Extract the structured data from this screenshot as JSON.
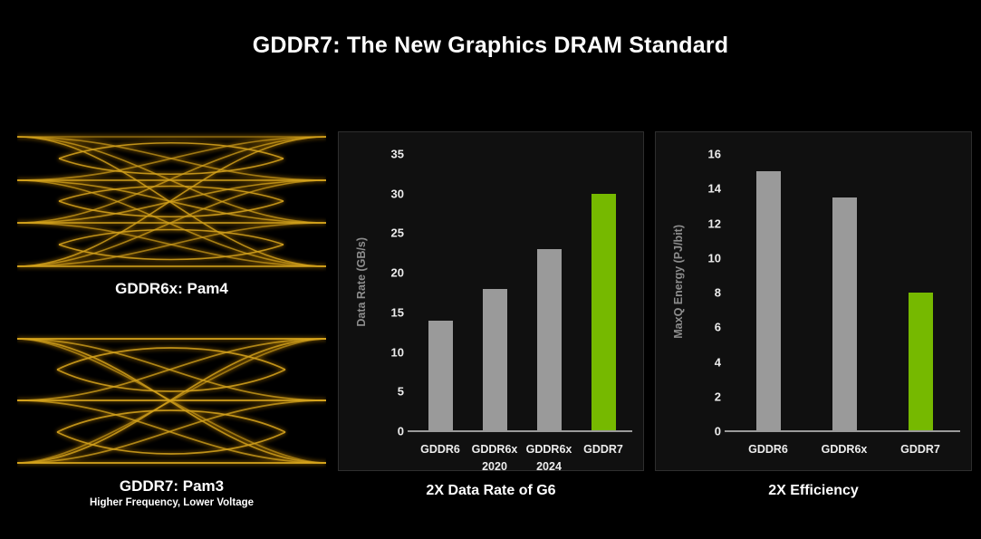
{
  "title": "GDDR7: The New Graphics DRAM Standard",
  "colors": {
    "background": "#000000",
    "panel_bg": "#101010",
    "panel_border": "#2e2e2e",
    "bar_gray": "#9a9a9a",
    "nvidia_green": "#76b900",
    "trace_gold": "#d7a51d",
    "axis_line": "#9a9a9a",
    "tick_text": "#ededed",
    "ylabel_text": "#8d8d8d",
    "title_text": "#ffffff"
  },
  "eye_panels": [
    {
      "label": "GDDR6x: Pam4",
      "sublabel": ""
    },
    {
      "label": "GDDR7: Pam3",
      "sublabel": "Higher Frequency, Lower Voltage"
    }
  ],
  "chart_data": [
    {
      "type": "bar",
      "title": "2X Data Rate of G6",
      "xlabel": "",
      "ylabel": "Data Rate (GB/s)",
      "categories": [
        "GDDR6",
        "GDDR6x\n2020",
        "GDDR6x\n2024",
        "GDDR7"
      ],
      "values": [
        14,
        18,
        23,
        30
      ],
      "bar_colors": [
        "bar_gray",
        "bar_gray",
        "bar_gray",
        "nvidia_green"
      ],
      "ylim": [
        0,
        35
      ],
      "ytick_step": 5,
      "grid": false,
      "legend": "none"
    },
    {
      "type": "bar",
      "title": "2X Efficiency",
      "xlabel": "",
      "ylabel": "MaxQ Energy (PJ/bit)",
      "categories": [
        "GDDR6",
        "GDDR6x",
        "GDDR7"
      ],
      "values": [
        15,
        13.5,
        8
      ],
      "bar_colors": [
        "bar_gray",
        "bar_gray",
        "nvidia_green"
      ],
      "ylim": [
        0,
        16
      ],
      "ytick_step": 2,
      "grid": false,
      "legend": "none"
    }
  ]
}
